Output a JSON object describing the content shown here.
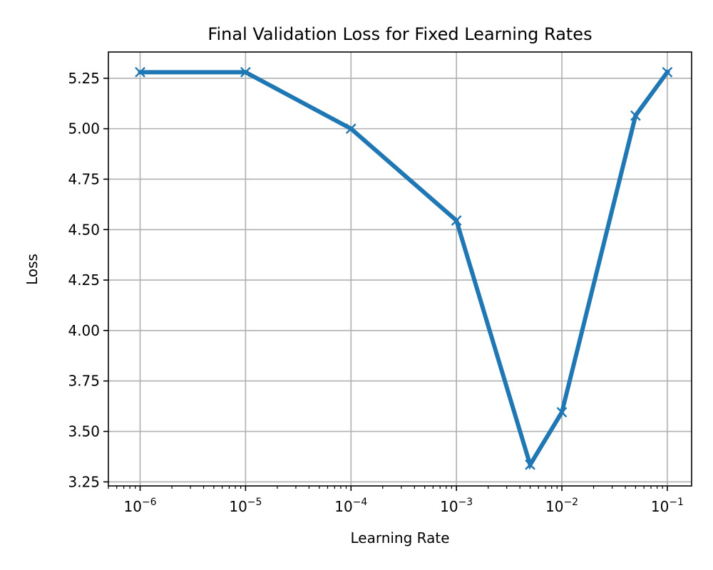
{
  "chart_data": {
    "type": "line",
    "title": "Final Validation Loss for Fixed Learning Rates",
    "xlabel": "Learning Rate",
    "ylabel": "Loss",
    "xscale": "log",
    "xlim": [
      5e-07,
      0.17
    ],
    "ylim": [
      3.23,
      5.38
    ],
    "grid": true,
    "marker": "x",
    "line_color": "#1f77b4",
    "x_ticks": [
      {
        "base": "10",
        "exp": "−6"
      },
      {
        "base": "10",
        "exp": "−5"
      },
      {
        "base": "10",
        "exp": "−4"
      },
      {
        "base": "10",
        "exp": "−3"
      },
      {
        "base": "10",
        "exp": "−2"
      },
      {
        "base": "10",
        "exp": "−1"
      }
    ],
    "y_ticks": [
      "3.25",
      "3.50",
      "3.75",
      "4.00",
      "4.25",
      "4.50",
      "4.75",
      "5.00",
      "5.25"
    ],
    "series": [
      {
        "x": [
          1e-06,
          1e-05,
          0.0001,
          0.001,
          0.005,
          0.01,
          0.05,
          0.1
        ],
        "y": [
          5.28,
          5.28,
          5.0,
          4.545,
          3.335,
          3.595,
          5.065,
          5.28
        ]
      }
    ]
  }
}
